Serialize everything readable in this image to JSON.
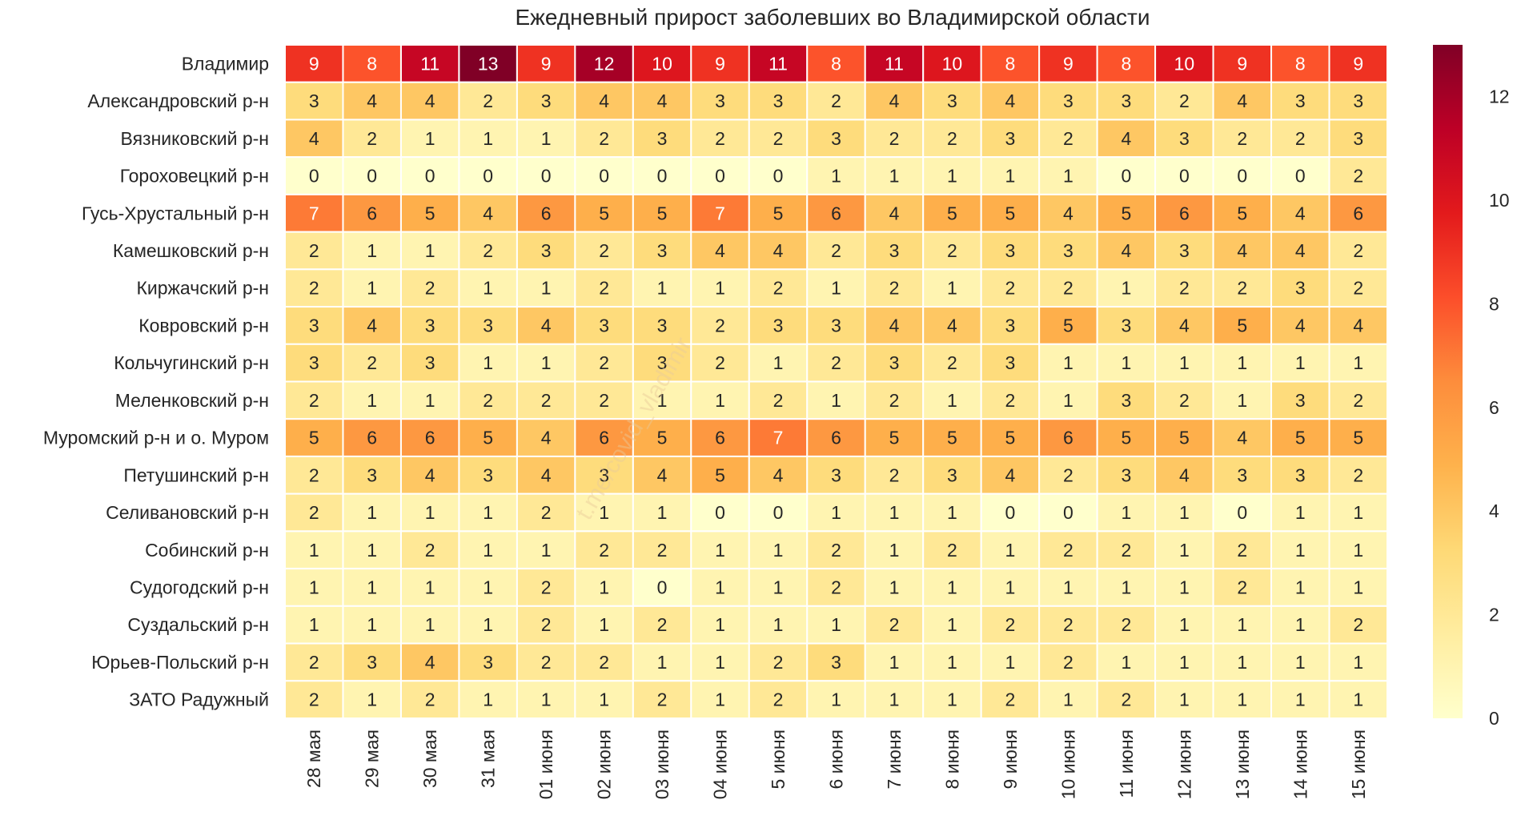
{
  "chart_data": {
    "type": "heatmap",
    "title": "Ежедневный прирост заболевших во Владимирской области",
    "xlabel": "",
    "ylabel": "",
    "columns": [
      "28 мая",
      "29 мая",
      "30 мая",
      "31 мая",
      "01 июня",
      "02 июня",
      "03 июня",
      "04 июня",
      "5 июня",
      "6 июня",
      "7 июня",
      "8 июня",
      "9 июня",
      "10 июня",
      "11 июня",
      "12 июня",
      "13 июня",
      "14 июня",
      "15 июня"
    ],
    "rows": [
      "Владимир",
      "Александровский р-н",
      "Вязниковский р-н",
      "Гороховецкий р-н",
      "Гусь-Хрустальный р-н",
      "Камешковский р-н",
      "Киржачский р-н",
      "Ковровский р-н",
      "Кольчугинский р-н",
      "Меленковский р-н",
      "Муромский р-н и о. Муром",
      "Петушинский р-н",
      "Селивановский р-н",
      "Собинский р-н",
      "Судогодский р-н",
      "Суздальский р-н",
      "Юрьев-Польский р-н",
      "ЗАТО Радужный"
    ],
    "values": [
      [
        9,
        8,
        11,
        13,
        9,
        12,
        10,
        9,
        11,
        8,
        11,
        10,
        8,
        9,
        8,
        10,
        9,
        8,
        9
      ],
      [
        3,
        4,
        4,
        2,
        3,
        4,
        4,
        3,
        3,
        2,
        4,
        3,
        4,
        3,
        3,
        2,
        4,
        3,
        3
      ],
      [
        4,
        2,
        1,
        1,
        1,
        2,
        3,
        2,
        2,
        3,
        2,
        2,
        3,
        2,
        4,
        3,
        2,
        2,
        3
      ],
      [
        0,
        0,
        0,
        0,
        0,
        0,
        0,
        0,
        0,
        1,
        1,
        1,
        1,
        1,
        0,
        0,
        0,
        0,
        2
      ],
      [
        7,
        6,
        5,
        4,
        6,
        5,
        5,
        7,
        5,
        6,
        4,
        5,
        5,
        4,
        5,
        6,
        5,
        4,
        6
      ],
      [
        2,
        1,
        1,
        2,
        3,
        2,
        3,
        4,
        4,
        2,
        3,
        2,
        3,
        3,
        4,
        3,
        4,
        4,
        2
      ],
      [
        2,
        1,
        2,
        1,
        1,
        2,
        1,
        1,
        2,
        1,
        2,
        1,
        2,
        2,
        1,
        2,
        2,
        3,
        2
      ],
      [
        3,
        4,
        3,
        3,
        4,
        3,
        3,
        2,
        3,
        3,
        4,
        4,
        3,
        5,
        3,
        4,
        5,
        4,
        4
      ],
      [
        3,
        2,
        3,
        1,
        1,
        2,
        3,
        2,
        1,
        2,
        3,
        2,
        3,
        1,
        1,
        1,
        1,
        1,
        1
      ],
      [
        2,
        1,
        1,
        2,
        2,
        2,
        1,
        1,
        2,
        1,
        2,
        1,
        2,
        1,
        3,
        2,
        1,
        3,
        2
      ],
      [
        5,
        6,
        6,
        5,
        4,
        6,
        5,
        6,
        7,
        6,
        5,
        5,
        5,
        6,
        5,
        5,
        4,
        5,
        5
      ],
      [
        2,
        3,
        4,
        3,
        4,
        3,
        4,
        5,
        4,
        3,
        2,
        3,
        4,
        2,
        3,
        4,
        3,
        3,
        2
      ],
      [
        2,
        1,
        1,
        1,
        2,
        1,
        1,
        0,
        0,
        1,
        1,
        1,
        0,
        0,
        1,
        1,
        0,
        1,
        1
      ],
      [
        1,
        1,
        2,
        1,
        1,
        2,
        2,
        1,
        1,
        2,
        1,
        2,
        1,
        2,
        2,
        1,
        2,
        1,
        1
      ],
      [
        1,
        1,
        1,
        1,
        2,
        1,
        0,
        1,
        1,
        2,
        1,
        1,
        1,
        1,
        1,
        1,
        2,
        1,
        1
      ],
      [
        1,
        1,
        1,
        1,
        2,
        1,
        2,
        1,
        1,
        1,
        2,
        1,
        2,
        2,
        2,
        1,
        1,
        1,
        2
      ],
      [
        2,
        3,
        4,
        3,
        2,
        2,
        1,
        1,
        2,
        3,
        1,
        1,
        1,
        2,
        1,
        1,
        1,
        1,
        1
      ],
      [
        2,
        1,
        2,
        1,
        1,
        1,
        2,
        1,
        2,
        1,
        1,
        1,
        2,
        1,
        2,
        1,
        1,
        1,
        1
      ]
    ],
    "vmin": 0,
    "vmax": 13,
    "colorbar_ticks": [
      0,
      2,
      4,
      6,
      8,
      10,
      12
    ],
    "colormap": "YlOrRd",
    "colormap_stops": [
      "#ffffcc",
      "#ffeda0",
      "#fed976",
      "#feb24c",
      "#fd8d3c",
      "#fc4e2a",
      "#e31a1c",
      "#bd0026",
      "#800026"
    ],
    "watermark": "t.me/covid_vladimir"
  }
}
